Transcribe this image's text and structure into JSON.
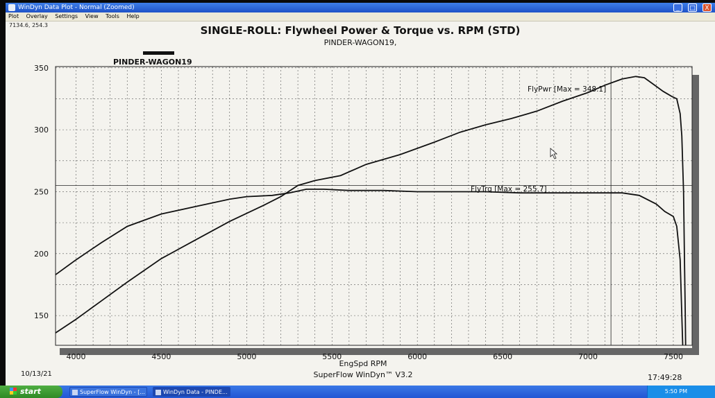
{
  "window": {
    "title": "WinDyn Data Plot - Normal  (Zoomed)",
    "buttons": [
      "_",
      "□",
      "X"
    ]
  },
  "menu": [
    "Plot",
    "Overlay",
    "Settings",
    "View",
    "Tools",
    "Help"
  ],
  "coord_readout": "7134.6, 254.3",
  "footer": {
    "date": "10/13/21",
    "software": "SuperFlow WinDyn™ V3.2",
    "time": "17:49:28"
  },
  "taskbar": {
    "start": "start",
    "tasks": [
      "SuperFlow WinDyn - [...",
      "WinDyn Data - PINDE..."
    ],
    "clock": "5:50 PM"
  },
  "colors": {
    "titlebar": "#2a63d8",
    "plot_bg": "#f4f3ee",
    "line": "#111111",
    "taskbar": "#2a63d8",
    "start": "#3c9a30"
  },
  "chart_data": {
    "type": "line",
    "title": "SINGLE-ROLL: Flywheel Power & Torque vs. RPM (STD)",
    "subtitle": "PINDER-WAGON19,",
    "legend": "PINDER-WAGON19",
    "legend_placement": "top-left",
    "xlabel": "EngSpd RPM",
    "ylabel": "",
    "xlim": [
      3880,
      7610
    ],
    "ylim": [
      126,
      351
    ],
    "x_ticks": [
      4000,
      4500,
      5000,
      5500,
      6000,
      6500,
      7000,
      7500
    ],
    "y_ticks": [
      150,
      200,
      250,
      300,
      350
    ],
    "grid": true,
    "cursor": {
      "x": 7134.6,
      "y": 254.3
    },
    "series": [
      {
        "name": "FlyPwr",
        "annotation": "FlyPwr [Max = 348.1]",
        "points": [
          [
            3880,
            136
          ],
          [
            4000,
            147
          ],
          [
            4150,
            162
          ],
          [
            4300,
            177
          ],
          [
            4500,
            196
          ],
          [
            4700,
            211
          ],
          [
            4900,
            226
          ],
          [
            5100,
            239
          ],
          [
            5200,
            246
          ],
          [
            5300,
            255
          ],
          [
            5400,
            259
          ],
          [
            5550,
            263
          ],
          [
            5700,
            272
          ],
          [
            5900,
            280
          ],
          [
            6100,
            290
          ],
          [
            6250,
            298
          ],
          [
            6400,
            304
          ],
          [
            6550,
            309
          ],
          [
            6700,
            315
          ],
          [
            6850,
            323
          ],
          [
            7000,
            330
          ],
          [
            7100,
            336
          ],
          [
            7200,
            341
          ],
          [
            7280,
            343
          ],
          [
            7330,
            342
          ],
          [
            7380,
            337
          ],
          [
            7440,
            331
          ],
          [
            7490,
            327
          ],
          [
            7520,
            325
          ],
          [
            7540,
            313
          ],
          [
            7550,
            295
          ],
          [
            7560,
            250
          ],
          [
            7565,
            200
          ],
          [
            7570,
            150
          ],
          [
            7572,
            126
          ]
        ]
      },
      {
        "name": "FlyTrq",
        "annotation": "FlyTrq [Max = 255.7]",
        "points": [
          [
            3880,
            183
          ],
          [
            4000,
            195
          ],
          [
            4150,
            209
          ],
          [
            4300,
            222
          ],
          [
            4500,
            232
          ],
          [
            4700,
            238
          ],
          [
            4900,
            244
          ],
          [
            5000,
            246
          ],
          [
            5150,
            247
          ],
          [
            5250,
            249
          ],
          [
            5350,
            252
          ],
          [
            5450,
            252
          ],
          [
            5600,
            251
          ],
          [
            5800,
            251
          ],
          [
            6000,
            250
          ],
          [
            6200,
            250
          ],
          [
            6400,
            250
          ],
          [
            6600,
            249
          ],
          [
            6800,
            249
          ],
          [
            7000,
            249
          ],
          [
            7200,
            249
          ],
          [
            7300,
            247
          ],
          [
            7400,
            240
          ],
          [
            7450,
            234
          ],
          [
            7500,
            230
          ],
          [
            7520,
            222
          ],
          [
            7540,
            195
          ],
          [
            7550,
            150
          ],
          [
            7555,
            126
          ]
        ]
      }
    ],
    "reference_line": {
      "y": 255,
      "style": "thin-horizontal"
    }
  }
}
